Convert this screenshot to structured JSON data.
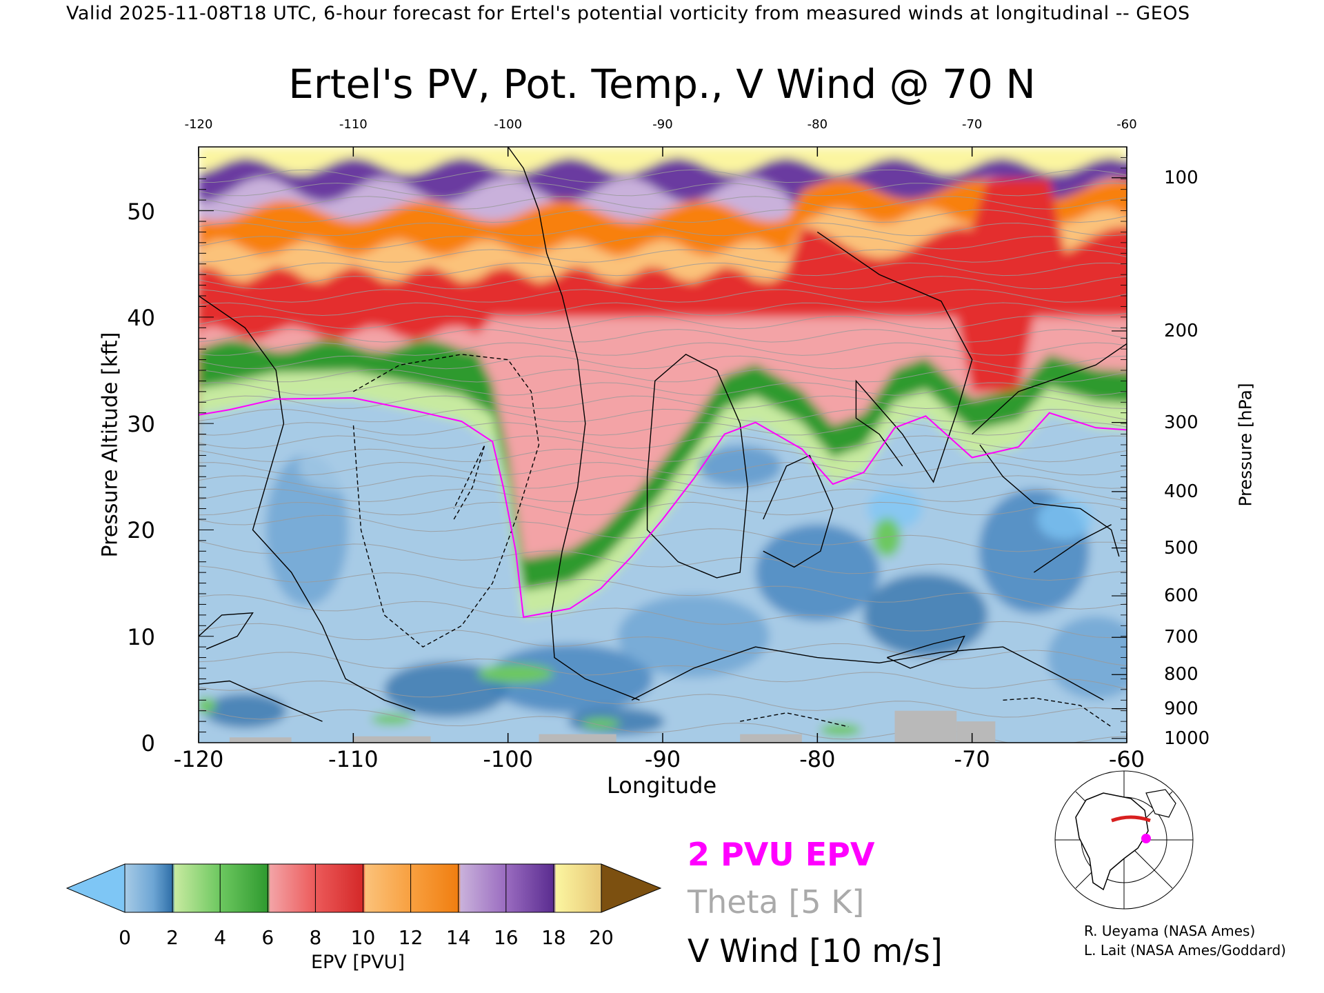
{
  "header": {
    "line": "Valid 2025-11-08T18 UTC, 6-hour forecast for Ertel's potential vorticity from measured winds at longitudinal -- GEOS"
  },
  "chart_data": {
    "type": "heatmap",
    "title": "Ertel's PV, Pot. Temp., V Wind @ 70 N",
    "xlabel": "Longitude",
    "ylabel_left": "Pressure Altitude [kft]",
    "ylabel_right": "Pressure [hPa]",
    "xlim": [
      -120,
      -60
    ],
    "ylim": [
      0,
      56
    ],
    "x_ticks": [
      "-120",
      "-110",
      "-100",
      "-90",
      "-80",
      "-70",
      "-60"
    ],
    "x_ticks_top": [
      "-120",
      "-110",
      "-100",
      "-90",
      "-80",
      "-70",
      "-60"
    ],
    "y_ticks_left": [
      "0",
      "10",
      "20",
      "30",
      "40",
      "50"
    ],
    "y_ticks_right": [
      {
        "label": "100",
        "kft": 53.1
      },
      {
        "label": "200",
        "kft": 38.7
      },
      {
        "label": "300",
        "kft": 30.1
      },
      {
        "label": "400",
        "kft": 23.6
      },
      {
        "label": "500",
        "kft": 18.3
      },
      {
        "label": "600",
        "kft": 13.8
      },
      {
        "label": "700",
        "kft": 9.9
      },
      {
        "label": "800",
        "kft": 6.4
      },
      {
        "label": "900",
        "kft": 3.2
      },
      {
        "label": "1000",
        "kft": 0.4
      }
    ],
    "boundary_2pvu": {
      "x": [
        -120,
        -118,
        -115,
        -110,
        -106,
        -103,
        -101,
        -100.3,
        -99.5,
        -99,
        -96,
        -94,
        -92,
        -90,
        -88,
        -86,
        -84,
        -81,
        -79,
        -77,
        -75,
        -73,
        -70,
        -67,
        -65,
        -62,
        -60
      ],
      "y": [
        30.8,
        31.3,
        32.3,
        32.4,
        31.2,
        30.2,
        28.3,
        24.0,
        18.0,
        11.8,
        12.6,
        14.5,
        17.5,
        21.0,
        24.8,
        29.0,
        30.1,
        27.6,
        24.3,
        25.4,
        29.6,
        30.7,
        26.8,
        27.8,
        31.0,
        29.6,
        29.4
      ]
    },
    "pv_stratification": [
      {
        "pv": 1.5,
        "note": "troposphere"
      },
      {
        "pv": 4,
        "note": "green band"
      },
      {
        "pv": 9,
        "note": "red band"
      },
      {
        "pv": 12,
        "note": "orange band"
      },
      {
        "pv": 16,
        "note": "purple band"
      },
      {
        "pv": 19,
        "note": "yellow band"
      }
    ],
    "colorbar": {
      "label": "EPV [PVU]",
      "ticks": [
        "0",
        "2",
        "4",
        "6",
        "8",
        "10",
        "12",
        "14",
        "16",
        "18",
        "20"
      ],
      "colors": {
        "under": "#7ec6f5",
        "blue_light": "#a7cbe6",
        "blue_dark": "#2f6fa8",
        "green_light": "#c7eaa0",
        "green_dark": "#2f9a2f",
        "pink": "#f3a3a6",
        "red": "#e42f2f",
        "orange_light": "#fbc27a",
        "orange": "#f88010",
        "purple_light": "#c9b1db",
        "purple": "#6a3aa0",
        "yellow": "#fbf5a0",
        "over": "#7c5010"
      }
    }
  },
  "legend": {
    "epv_line": "2 PVU EPV",
    "theta": "Theta [5 K]",
    "vwind": "V Wind [10 m/s]",
    "epv_color": "#ff00ff",
    "theta_color": "#aaaaaa"
  },
  "credits": {
    "line1": "R. Ueyama (NASA Ames)",
    "line2": "L. Lait (NASA Ames/Goddard)"
  },
  "locator_map": {
    "marker_color": "#ff00ff",
    "track_color": "#d82020"
  }
}
